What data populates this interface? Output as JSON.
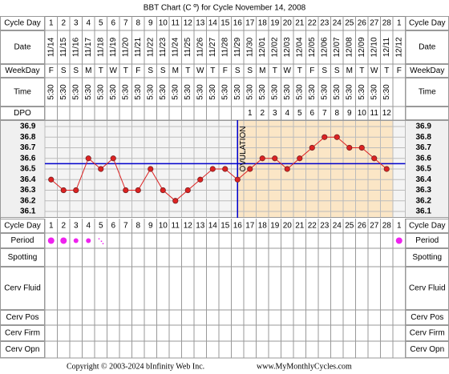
{
  "chart_data": {
    "type": "line",
    "title": "BBT Chart (C º) for Cycle November 14, 2008",
    "top_row_labels": [
      "Cycle Day",
      "Date",
      "WeekDay",
      "Time",
      "DPO"
    ],
    "bottom_row_labels": [
      "Cycle Day",
      "Period",
      "Spotting",
      "Cerv Fluid",
      "Cerv Pos",
      "Cerv Firm",
      "Cerv Opn"
    ],
    "categories": [
      "1",
      "2",
      "3",
      "4",
      "5",
      "6",
      "7",
      "8",
      "9",
      "10",
      "11",
      "12",
      "13",
      "14",
      "15",
      "16",
      "17",
      "18",
      "19",
      "20",
      "21",
      "22",
      "23",
      "24",
      "25",
      "26",
      "27",
      "28",
      "1"
    ],
    "dates": [
      "11/14",
      "11/15",
      "11/16",
      "11/17",
      "11/18",
      "11/19",
      "11/20",
      "11/21",
      "11/22",
      "11/23",
      "11/24",
      "11/25",
      "11/26",
      "11/27",
      "11/28",
      "11/29",
      "11/30",
      "12/01",
      "12/02",
      "12/03",
      "12/04",
      "12/05",
      "12/06",
      "12/07",
      "12/08",
      "12/09",
      "12/10",
      "12/11",
      "12/12"
    ],
    "weekdays": [
      "F",
      "S",
      "S",
      "M",
      "T",
      "W",
      "T",
      "F",
      "S",
      "S",
      "M",
      "T",
      "W",
      "T",
      "F",
      "S",
      "S",
      "M",
      "T",
      "W",
      "T",
      "F",
      "S",
      "S",
      "M",
      "T",
      "W",
      "T",
      "F"
    ],
    "times": [
      "5:30",
      "5:30",
      "5:30",
      "5:30",
      "5:30",
      "5:30",
      "5:30",
      "5:30",
      "5:30",
      "5:30",
      "5:30",
      "5:30",
      "5:30",
      "5:30",
      "5:30",
      "5:30",
      "5:30",
      "5:30",
      "5:30",
      "5:30",
      "5:30",
      "5:30",
      "5:30",
      "5:30",
      "5:30",
      "5:30",
      "5:30",
      "5:30",
      null
    ],
    "dpo": [
      null,
      null,
      null,
      null,
      null,
      null,
      null,
      null,
      null,
      null,
      null,
      null,
      null,
      null,
      null,
      null,
      1,
      2,
      3,
      4,
      5,
      6,
      7,
      8,
      9,
      10,
      11,
      12,
      null
    ],
    "series": [
      {
        "name": "BBT",
        "color": "#dd2222",
        "values": [
          36.4,
          36.3,
          36.3,
          36.6,
          36.5,
          36.6,
          36.3,
          36.3,
          36.5,
          36.3,
          36.2,
          36.3,
          36.4,
          36.5,
          36.5,
          36.4,
          36.5,
          36.6,
          36.6,
          36.5,
          36.6,
          36.7,
          36.8,
          36.8,
          36.7,
          36.7,
          36.6,
          36.5,
          null
        ]
      }
    ],
    "period": [
      3,
      3,
      2,
      2,
      1,
      null,
      null,
      null,
      null,
      null,
      null,
      null,
      null,
      null,
      null,
      null,
      null,
      null,
      null,
      null,
      null,
      null,
      null,
      null,
      null,
      null,
      null,
      null,
      3
    ],
    "ylim": [
      36.04,
      36.96
    ],
    "yticks": [
      36.9,
      36.8,
      36.7,
      36.6,
      36.5,
      36.4,
      36.3,
      36.2,
      36.1
    ],
    "coverline": 36.55,
    "ovulation_day": 16,
    "ovulation_label": "OVULATION",
    "footer": [
      "Copyright © 2003-2024 bInfinity Web Inc.",
      "www.MyMonthlyCycles.com"
    ]
  }
}
